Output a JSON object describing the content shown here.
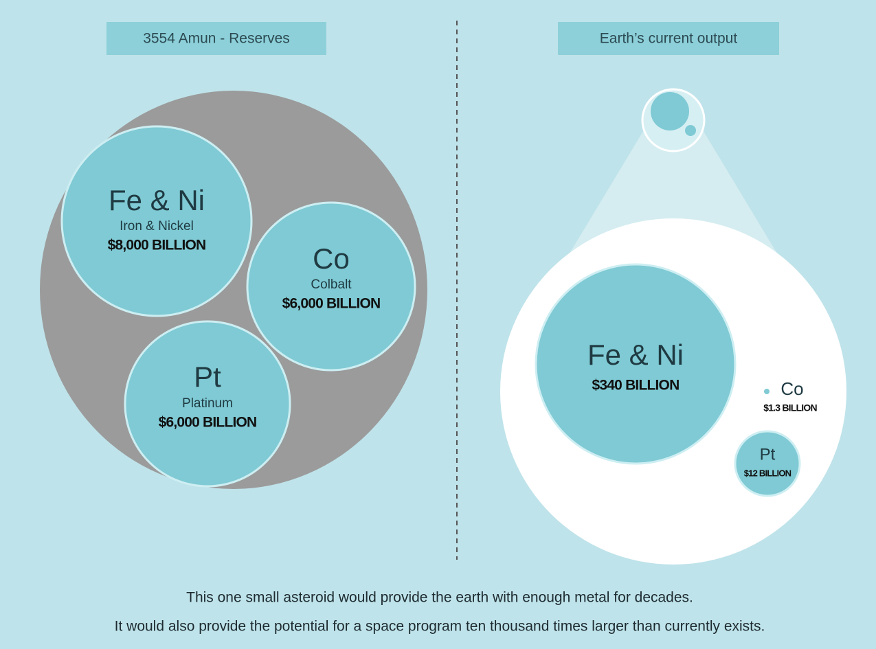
{
  "left": {
    "title": "3554 Amun - Reserves",
    "items": [
      {
        "symbol": "Fe & Ni",
        "name": "Iron & Nickel",
        "value": "$8,000 BILLION"
      },
      {
        "symbol": "Co",
        "name": "Colbalt",
        "value": "$6,000 BILLION"
      },
      {
        "symbol": "Pt",
        "name": "Platinum",
        "value": "$6,000 BILLION"
      }
    ]
  },
  "right": {
    "title": "Earth’s current output",
    "items": [
      {
        "symbol": "Fe & Ni",
        "value": "$340 BILLION"
      },
      {
        "symbol": "Co",
        "value": "$1.3 BILLION"
      },
      {
        "symbol": "Pt",
        "value": "$12 BILLION"
      }
    ]
  },
  "footer": [
    "This one small asteroid would provide the earth with enough metal for decades.",
    "It would also provide the potential for a space program ten thousand times larger than currently exists."
  ]
}
